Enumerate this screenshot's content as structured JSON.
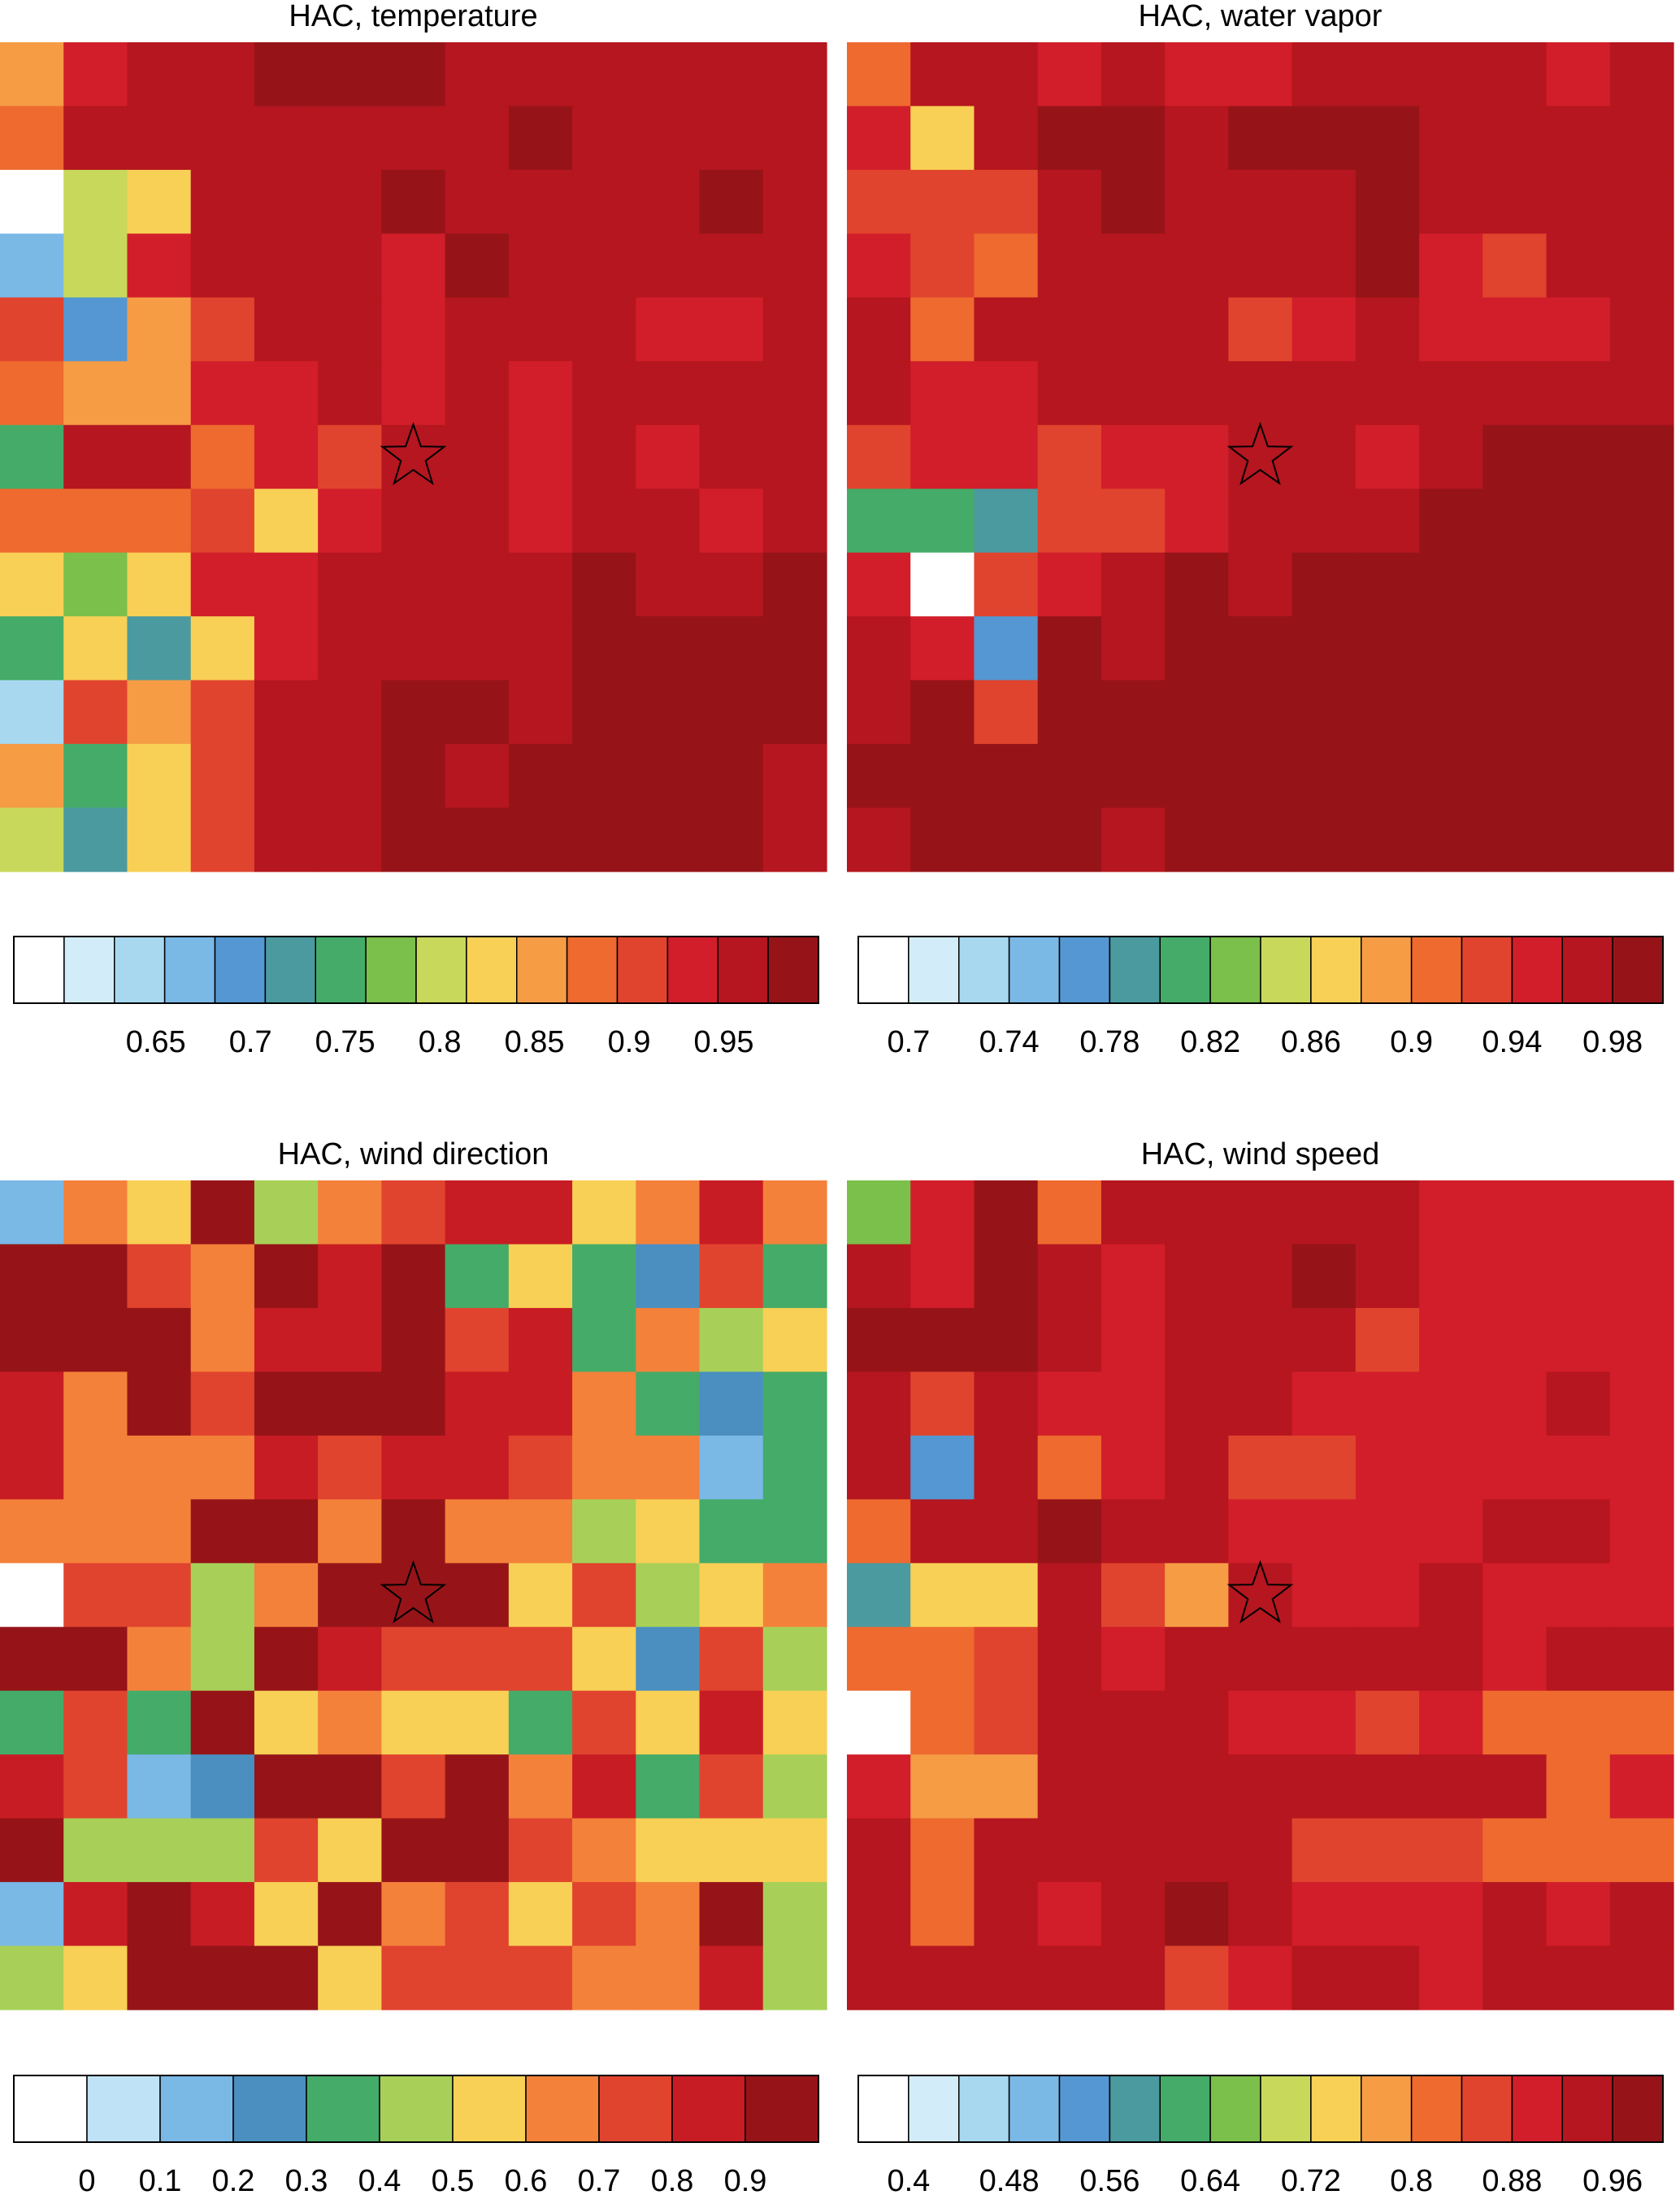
{
  "chart_data": [
    {
      "type": "heatmap",
      "title": "HAC, temperature",
      "zlim": [
        0.575,
        1
      ],
      "zticks": [
        0.65,
        0.7,
        0.75,
        0.8,
        0.85,
        0.9,
        0.95
      ],
      "colors": [
        "#ffffff",
        "#d3ecf9",
        "#a8d8f0",
        "#7ab8e6",
        "#5497d2",
        "#4a9a9f",
        "#45ab68",
        "#7ac04a",
        "#c8d85a",
        "#f8d055",
        "#f59c45",
        "#ee6a2e",
        "#e0442e",
        "#d21e2a",
        "#b5161f",
        "#961418"
      ],
      "values": [
        [
          0.85,
          0.93,
          0.96,
          0.96,
          0.99,
          0.99,
          0.99,
          0.96,
          0.96,
          0.96,
          0.96,
          0.96,
          0.96
        ],
        [
          0.88,
          0.96,
          0.96,
          0.96,
          0.96,
          0.96,
          0.96,
          0.96,
          0.99,
          0.96,
          0.96,
          0.96,
          0.96
        ],
        [
          0.59,
          0.8,
          0.83,
          0.96,
          0.96,
          0.96,
          0.99,
          0.96,
          0.96,
          0.96,
          0.96,
          0.99,
          0.96
        ],
        [
          0.67,
          0.8,
          0.93,
          0.96,
          0.96,
          0.96,
          0.93,
          0.99,
          0.96,
          0.96,
          0.96,
          0.96,
          0.96
        ],
        [
          0.91,
          0.69,
          0.85,
          0.91,
          0.96,
          0.96,
          0.93,
          0.96,
          0.96,
          0.96,
          0.93,
          0.93,
          0.96
        ],
        [
          0.88,
          0.85,
          0.85,
          0.93,
          0.93,
          0.96,
          0.93,
          0.96,
          0.93,
          0.96,
          0.96,
          0.96,
          0.96
        ],
        [
          0.75,
          0.96,
          0.96,
          0.88,
          0.93,
          0.91,
          0.96,
          0.96,
          0.93,
          0.96,
          0.93,
          0.96,
          0.96
        ],
        [
          0.88,
          0.88,
          0.88,
          0.91,
          0.83,
          0.93,
          0.96,
          0.96,
          0.93,
          0.96,
          0.96,
          0.93,
          0.96
        ],
        [
          0.83,
          0.77,
          0.83,
          0.93,
          0.93,
          0.96,
          0.96,
          0.96,
          0.96,
          0.99,
          0.96,
          0.96,
          0.99
        ],
        [
          0.75,
          0.83,
          0.72,
          0.83,
          0.93,
          0.96,
          0.96,
          0.96,
          0.96,
          0.99,
          0.99,
          0.99,
          0.99
        ],
        [
          0.64,
          0.91,
          0.85,
          0.91,
          0.96,
          0.96,
          0.99,
          0.99,
          0.96,
          0.99,
          0.99,
          0.99,
          0.99
        ],
        [
          0.85,
          0.75,
          0.83,
          0.91,
          0.96,
          0.96,
          0.99,
          0.96,
          0.99,
          0.99,
          0.99,
          0.99,
          0.96
        ],
        [
          0.8,
          0.72,
          0.83,
          0.91,
          0.96,
          0.96,
          0.99,
          0.99,
          0.99,
          0.99,
          0.99,
          0.99,
          0.96
        ]
      ]
    },
    {
      "type": "heatmap",
      "title": "HAC, water vapor",
      "zlim": [
        0.68,
        1
      ],
      "zticks": [
        0.7,
        0.74,
        0.78,
        0.82,
        0.86,
        0.9,
        0.94,
        0.98
      ],
      "colors": [
        "#ffffff",
        "#d3ecf9",
        "#a8d8f0",
        "#7ab8e6",
        "#5497d2",
        "#4a9a9f",
        "#45ab68",
        "#7ac04a",
        "#c8d85a",
        "#f8d055",
        "#f59c45",
        "#ee6a2e",
        "#e0442e",
        "#d21e2a",
        "#b5161f",
        "#961418"
      ],
      "values": [
        [
          0.91,
          0.97,
          0.97,
          0.95,
          0.97,
          0.95,
          0.95,
          0.97,
          0.97,
          0.97,
          0.97,
          0.95,
          0.97
        ],
        [
          0.95,
          0.87,
          0.97,
          0.99,
          0.99,
          0.97,
          0.99,
          0.99,
          0.99,
          0.97,
          0.97,
          0.97,
          0.97
        ],
        [
          0.93,
          0.93,
          0.93,
          0.97,
          0.99,
          0.97,
          0.97,
          0.97,
          0.99,
          0.97,
          0.97,
          0.97,
          0.97
        ],
        [
          0.95,
          0.93,
          0.91,
          0.97,
          0.97,
          0.97,
          0.97,
          0.97,
          0.99,
          0.95,
          0.93,
          0.97,
          0.97
        ],
        [
          0.97,
          0.91,
          0.97,
          0.97,
          0.97,
          0.97,
          0.93,
          0.95,
          0.97,
          0.95,
          0.95,
          0.95,
          0.97
        ],
        [
          0.97,
          0.95,
          0.95,
          0.97,
          0.97,
          0.97,
          0.97,
          0.97,
          0.97,
          0.97,
          0.97,
          0.97,
          0.97
        ],
        [
          0.93,
          0.95,
          0.95,
          0.93,
          0.95,
          0.95,
          0.97,
          0.97,
          0.95,
          0.97,
          0.99,
          0.99,
          0.99
        ],
        [
          0.81,
          0.81,
          0.79,
          0.93,
          0.93,
          0.95,
          0.97,
          0.97,
          0.97,
          0.99,
          0.99,
          0.99,
          0.99
        ],
        [
          0.95,
          0.69,
          0.93,
          0.95,
          0.97,
          0.99,
          0.97,
          0.99,
          0.99,
          0.99,
          0.99,
          0.99,
          0.99
        ],
        [
          0.97,
          0.95,
          0.77,
          0.99,
          0.97,
          0.99,
          0.99,
          0.99,
          0.99,
          0.99,
          0.99,
          0.99,
          0.99
        ],
        [
          0.97,
          0.99,
          0.93,
          0.99,
          0.99,
          0.99,
          0.99,
          0.99,
          0.99,
          0.99,
          0.99,
          0.99,
          0.99
        ],
        [
          0.99,
          0.99,
          0.99,
          0.99,
          0.99,
          0.99,
          0.99,
          0.99,
          0.99,
          0.99,
          0.99,
          0.99,
          0.99
        ],
        [
          0.97,
          0.99,
          0.99,
          0.99,
          0.97,
          0.99,
          0.99,
          0.99,
          0.99,
          0.99,
          0.99,
          0.99,
          0.99
        ]
      ]
    },
    {
      "type": "heatmap",
      "title": "HAC, wind direction",
      "zlim": [
        -0.1,
        1
      ],
      "zticks": [
        0,
        0.1,
        0.2,
        0.3,
        0.4,
        0.5,
        0.6,
        0.7,
        0.8,
        0.9
      ],
      "colors": [
        "#ffffff",
        "#c0e2f6",
        "#7ab8e6",
        "#4a8fc0",
        "#45ab68",
        "#a8d058",
        "#f8d055",
        "#f4813a",
        "#e0442e",
        "#c81c24",
        "#961418"
      ],
      "values": [
        [
          0.15,
          0.65,
          0.55,
          0.95,
          0.45,
          0.65,
          0.75,
          0.85,
          0.85,
          0.55,
          0.65,
          0.85,
          0.65
        ],
        [
          0.95,
          0.95,
          0.75,
          0.65,
          0.95,
          0.85,
          0.95,
          0.35,
          0.55,
          0.35,
          0.25,
          0.75,
          0.35
        ],
        [
          0.95,
          0.95,
          0.95,
          0.65,
          0.85,
          0.85,
          0.95,
          0.75,
          0.85,
          0.35,
          0.65,
          0.45,
          0.55
        ],
        [
          0.85,
          0.65,
          0.95,
          0.75,
          0.95,
          0.95,
          0.95,
          0.85,
          0.85,
          0.65,
          0.35,
          0.25,
          0.35
        ],
        [
          0.85,
          0.65,
          0.65,
          0.65,
          0.85,
          0.75,
          0.85,
          0.85,
          0.75,
          0.65,
          0.65,
          0.15,
          0.35
        ],
        [
          0.65,
          0.65,
          0.65,
          0.95,
          0.95,
          0.65,
          0.95,
          0.65,
          0.65,
          0.45,
          0.55,
          0.35,
          0.35
        ],
        [
          -0.05,
          0.75,
          0.75,
          0.45,
          0.65,
          0.95,
          0.95,
          0.95,
          0.55,
          0.75,
          0.45,
          0.55,
          0.65
        ],
        [
          0.95,
          0.95,
          0.65,
          0.45,
          0.95,
          0.85,
          0.75,
          0.75,
          0.75,
          0.55,
          0.25,
          0.75,
          0.45
        ],
        [
          0.35,
          0.75,
          0.35,
          0.95,
          0.55,
          0.65,
          0.55,
          0.55,
          0.35,
          0.75,
          0.55,
          0.85,
          0.55
        ],
        [
          0.85,
          0.75,
          0.15,
          0.25,
          0.95,
          0.95,
          0.75,
          0.95,
          0.65,
          0.85,
          0.35,
          0.75,
          0.45
        ],
        [
          0.95,
          0.45,
          0.45,
          0.45,
          0.75,
          0.55,
          0.95,
          0.95,
          0.75,
          0.65,
          0.55,
          0.55,
          0.55
        ],
        [
          0.15,
          0.85,
          0.95,
          0.85,
          0.55,
          0.95,
          0.65,
          0.75,
          0.55,
          0.75,
          0.65,
          0.95,
          0.45
        ],
        [
          0.45,
          0.55,
          0.95,
          0.95,
          0.95,
          0.55,
          0.75,
          0.75,
          0.75,
          0.65,
          0.65,
          0.85,
          0.45
        ]
      ]
    },
    {
      "type": "heatmap",
      "title": "HAC, wind speed",
      "zlim": [
        0.36,
        1
      ],
      "zticks": [
        0.4,
        0.48,
        0.56,
        0.64,
        0.72,
        0.8,
        0.88,
        0.96
      ],
      "colors": [
        "#ffffff",
        "#d3ecf9",
        "#a8d8f0",
        "#7ab8e6",
        "#5497d2",
        "#4a9a9f",
        "#45ab68",
        "#7ac04a",
        "#c8d85a",
        "#f8d055",
        "#f59c45",
        "#ee6a2e",
        "#e0442e",
        "#d21e2a",
        "#b5161f",
        "#961418"
      ],
      "values": [
        [
          0.66,
          0.9,
          0.98,
          0.82,
          0.94,
          0.94,
          0.94,
          0.94,
          0.94,
          0.9,
          0.9,
          0.9,
          0.9
        ],
        [
          0.94,
          0.9,
          0.98,
          0.94,
          0.9,
          0.94,
          0.94,
          0.98,
          0.94,
          0.9,
          0.9,
          0.9,
          0.9
        ],
        [
          0.98,
          0.98,
          0.98,
          0.94,
          0.9,
          0.94,
          0.94,
          0.94,
          0.86,
          0.9,
          0.9,
          0.9,
          0.9
        ],
        [
          0.94,
          0.86,
          0.94,
          0.9,
          0.9,
          0.94,
          0.94,
          0.9,
          0.9,
          0.9,
          0.9,
          0.94,
          0.9
        ],
        [
          0.94,
          0.54,
          0.94,
          0.82,
          0.9,
          0.94,
          0.86,
          0.86,
          0.9,
          0.9,
          0.9,
          0.9,
          0.9
        ],
        [
          0.82,
          0.94,
          0.94,
          0.98,
          0.94,
          0.94,
          0.9,
          0.9,
          0.9,
          0.9,
          0.94,
          0.94,
          0.9
        ],
        [
          0.58,
          0.74,
          0.74,
          0.94,
          0.86,
          0.78,
          0.94,
          0.9,
          0.9,
          0.94,
          0.9,
          0.9,
          0.9
        ],
        [
          0.82,
          0.82,
          0.86,
          0.94,
          0.9,
          0.94,
          0.94,
          0.94,
          0.94,
          0.94,
          0.9,
          0.94,
          0.94
        ],
        [
          0.38,
          0.82,
          0.86,
          0.94,
          0.94,
          0.94,
          0.9,
          0.9,
          0.86,
          0.9,
          0.82,
          0.82,
          0.82
        ],
        [
          0.9,
          0.78,
          0.78,
          0.94,
          0.94,
          0.94,
          0.94,
          0.94,
          0.94,
          0.94,
          0.94,
          0.82,
          0.9
        ],
        [
          0.94,
          0.82,
          0.94,
          0.94,
          0.94,
          0.94,
          0.94,
          0.86,
          0.86,
          0.86,
          0.82,
          0.82,
          0.82
        ],
        [
          0.94,
          0.82,
          0.94,
          0.9,
          0.94,
          0.98,
          0.94,
          0.9,
          0.9,
          0.9,
          0.94,
          0.9,
          0.94
        ],
        [
          0.94,
          0.94,
          0.94,
          0.94,
          0.94,
          0.86,
          0.9,
          0.94,
          0.94,
          0.9,
          0.94,
          0.94,
          0.94
        ]
      ]
    }
  ]
}
